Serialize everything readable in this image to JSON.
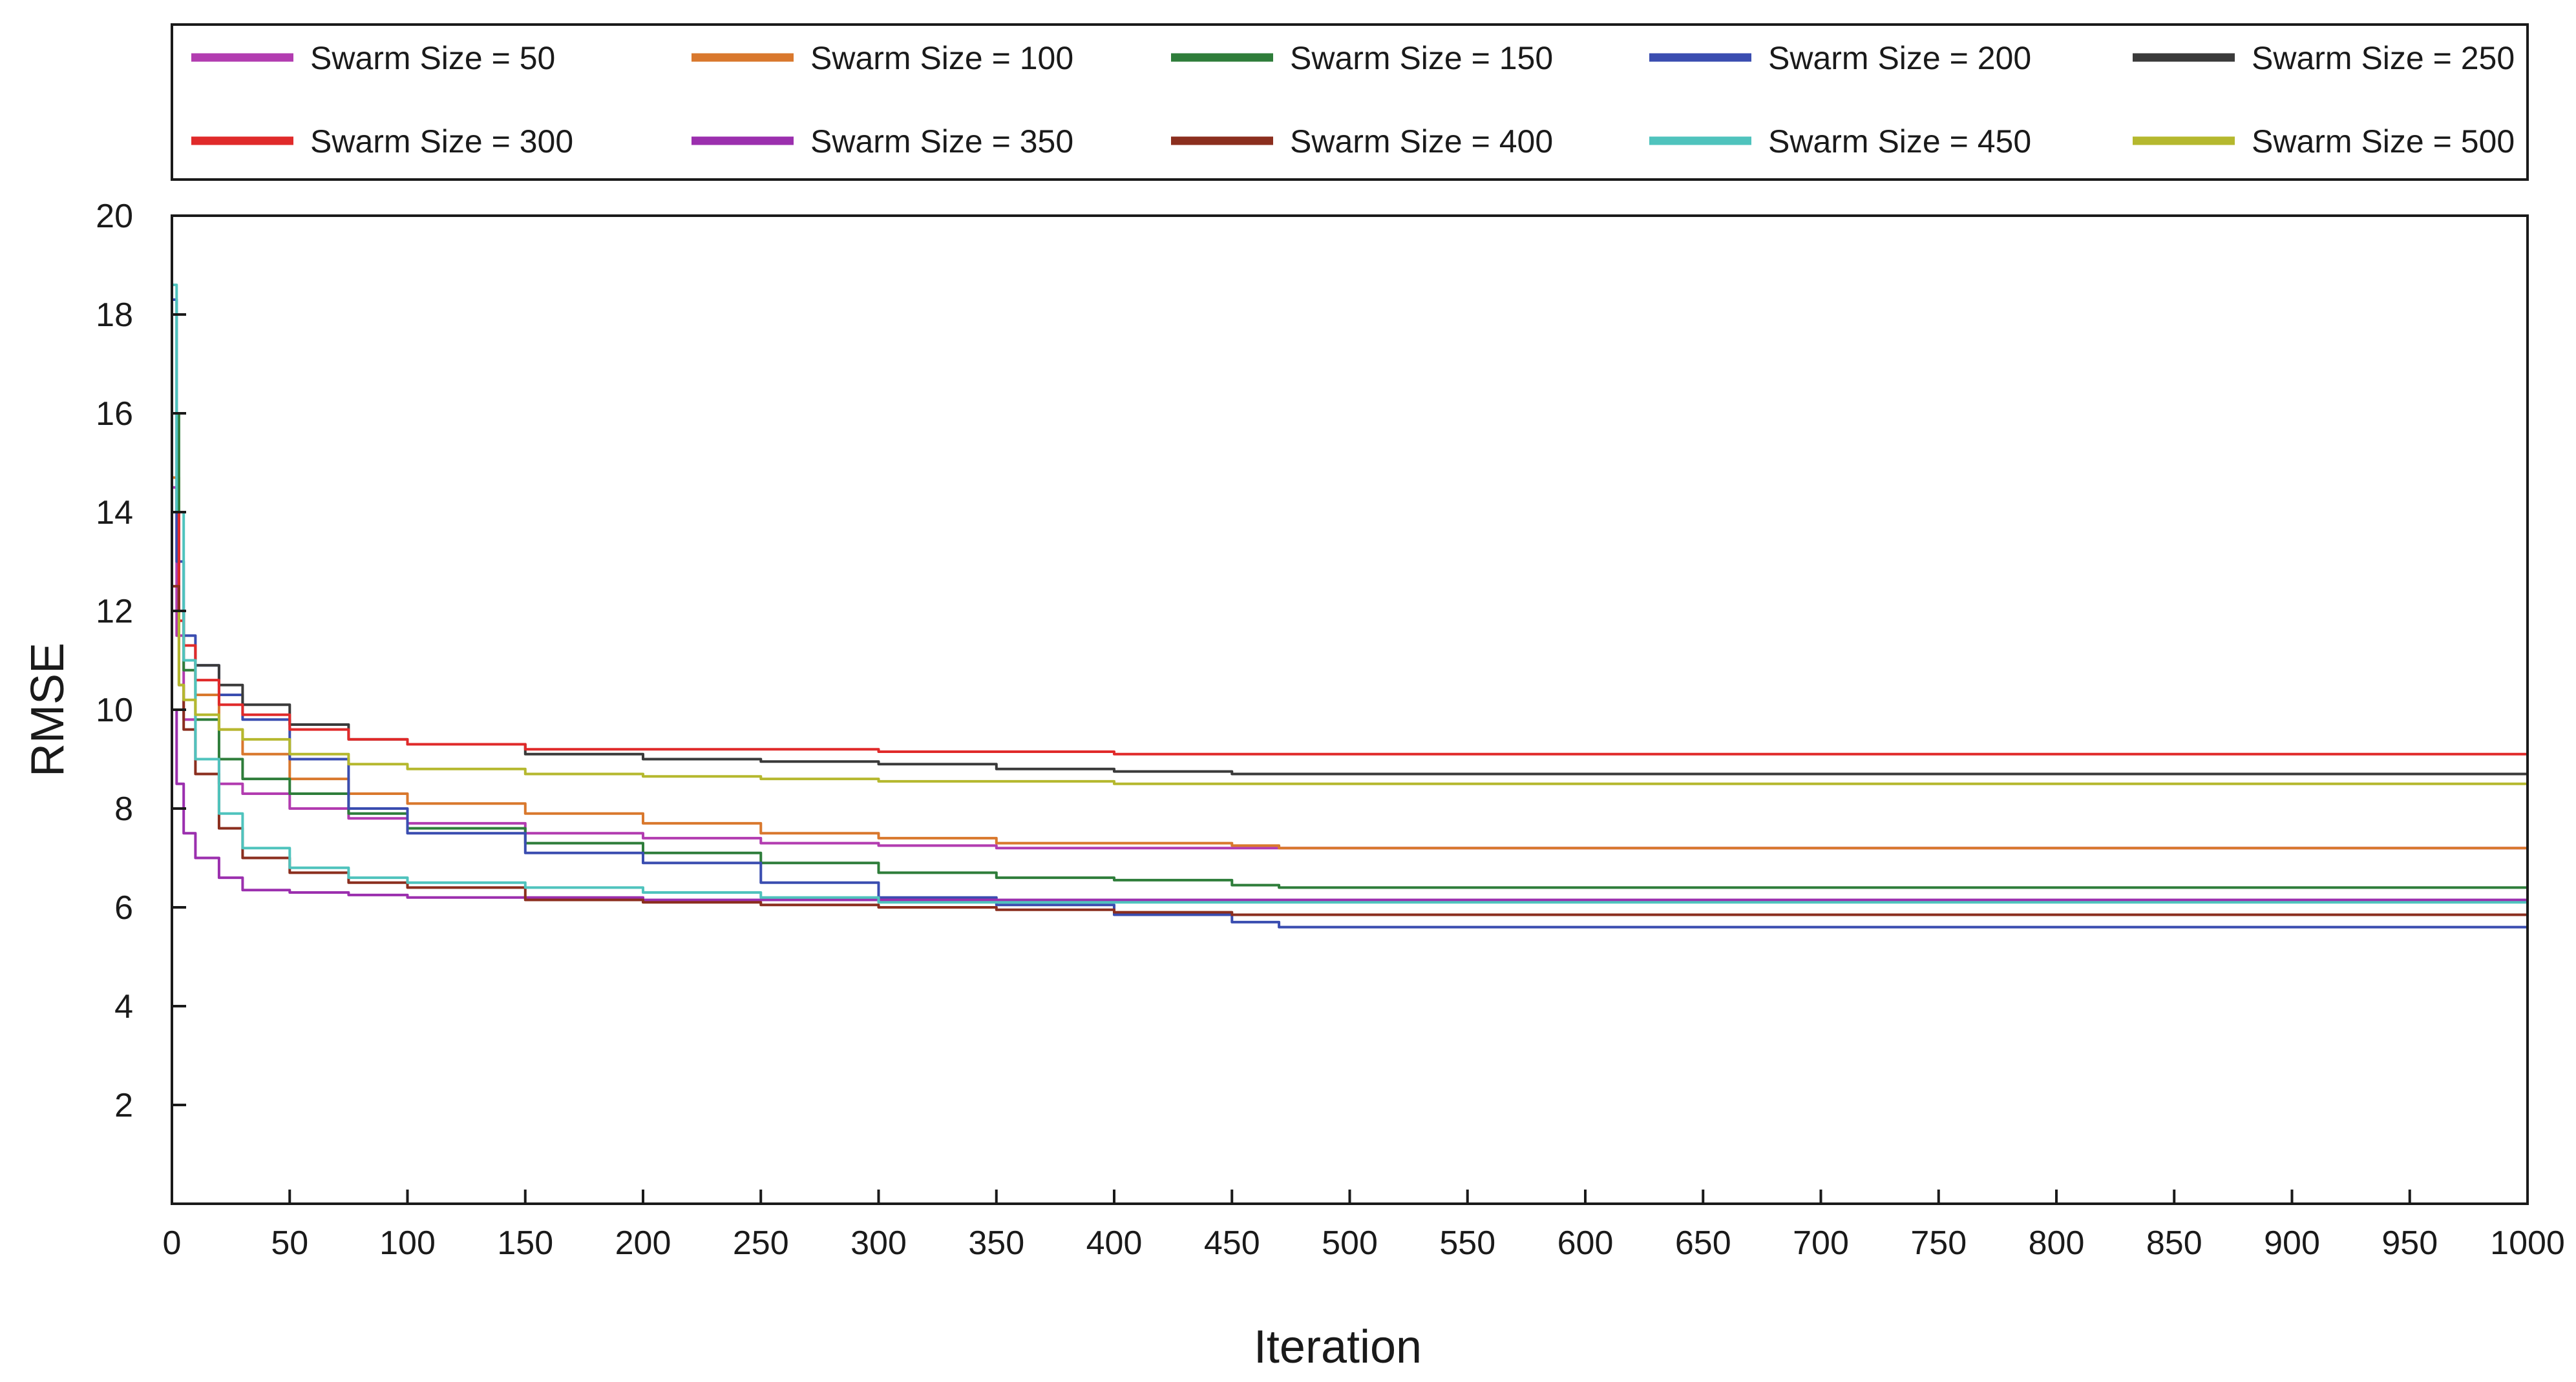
{
  "chart_data": {
    "type": "line",
    "title": "",
    "xlabel": "Iteration",
    "ylabel": "RMSE",
    "xlim": [
      0,
      1000
    ],
    "ylim": [
      0,
      20
    ],
    "x_ticks": [
      0,
      50,
      100,
      150,
      200,
      250,
      300,
      350,
      400,
      450,
      500,
      550,
      600,
      650,
      700,
      750,
      800,
      850,
      900,
      950,
      1000
    ],
    "y_ticks": [
      2,
      4,
      6,
      8,
      10,
      12,
      14,
      16,
      18,
      20
    ],
    "grid": false,
    "legend_position": "top",
    "series": [
      {
        "name": "Swarm Size = 50",
        "color": "#b23cb0",
        "points": [
          [
            0,
            14.5
          ],
          [
            2,
            11.5
          ],
          [
            5,
            9.8
          ],
          [
            10,
            9.0
          ],
          [
            20,
            8.5
          ],
          [
            30,
            8.3
          ],
          [
            50,
            8.0
          ],
          [
            75,
            7.8
          ],
          [
            100,
            7.7
          ],
          [
            150,
            7.5
          ],
          [
            200,
            7.4
          ],
          [
            250,
            7.3
          ],
          [
            300,
            7.25
          ],
          [
            350,
            7.2
          ],
          [
            450,
            7.2
          ],
          [
            1000,
            7.2
          ]
        ]
      },
      {
        "name": "Swarm Size = 100",
        "color": "#d9782d",
        "points": [
          [
            0,
            14.7
          ],
          [
            3,
            12.0
          ],
          [
            5,
            11.0
          ],
          [
            10,
            10.3
          ],
          [
            20,
            9.6
          ],
          [
            30,
            9.1
          ],
          [
            50,
            8.6
          ],
          [
            75,
            8.3
          ],
          [
            100,
            8.1
          ],
          [
            150,
            7.9
          ],
          [
            200,
            7.7
          ],
          [
            250,
            7.5
          ],
          [
            300,
            7.4
          ],
          [
            350,
            7.3
          ],
          [
            400,
            7.3
          ],
          [
            450,
            7.25
          ],
          [
            470,
            7.2
          ],
          [
            1000,
            7.2
          ]
        ]
      },
      {
        "name": "Swarm Size = 150",
        "color": "#2e7d3a",
        "points": [
          [
            0,
            16.0
          ],
          [
            3,
            12.0
          ],
          [
            5,
            10.8
          ],
          [
            10,
            9.8
          ],
          [
            20,
            9.0
          ],
          [
            30,
            8.6
          ],
          [
            50,
            8.3
          ],
          [
            75,
            7.9
          ],
          [
            100,
            7.6
          ],
          [
            150,
            7.3
          ],
          [
            200,
            7.1
          ],
          [
            250,
            6.9
          ],
          [
            300,
            6.7
          ],
          [
            350,
            6.6
          ],
          [
            400,
            6.55
          ],
          [
            450,
            6.45
          ],
          [
            470,
            6.4
          ],
          [
            1000,
            6.4
          ]
        ]
      },
      {
        "name": "Swarm Size = 200",
        "color": "#3a4db0",
        "points": [
          [
            0,
            18.3
          ],
          [
            2,
            13.0
          ],
          [
            5,
            11.5
          ],
          [
            10,
            10.9
          ],
          [
            20,
            10.3
          ],
          [
            30,
            9.8
          ],
          [
            50,
            9.0
          ],
          [
            75,
            8.0
          ],
          [
            100,
            7.5
          ],
          [
            150,
            7.1
          ],
          [
            200,
            6.9
          ],
          [
            250,
            6.5
          ],
          [
            300,
            6.2
          ],
          [
            350,
            6.05
          ],
          [
            400,
            5.85
          ],
          [
            450,
            5.7
          ],
          [
            470,
            5.6
          ],
          [
            1000,
            5.6
          ]
        ]
      },
      {
        "name": "Swarm Size = 250",
        "color": "#3a3a3a",
        "points": [
          [
            0,
            14.0
          ],
          [
            3,
            12.0
          ],
          [
            5,
            11.3
          ],
          [
            10,
            10.9
          ],
          [
            20,
            10.5
          ],
          [
            30,
            10.1
          ],
          [
            50,
            9.7
          ],
          [
            75,
            9.4
          ],
          [
            100,
            9.3
          ],
          [
            150,
            9.1
          ],
          [
            200,
            9.0
          ],
          [
            250,
            8.95
          ],
          [
            300,
            8.9
          ],
          [
            350,
            8.8
          ],
          [
            400,
            8.75
          ],
          [
            450,
            8.7
          ],
          [
            1000,
            8.7
          ]
        ]
      },
      {
        "name": "Swarm Size = 300",
        "color": "#e02a2a",
        "points": [
          [
            0,
            14.0
          ],
          [
            3,
            11.8
          ],
          [
            5,
            11.3
          ],
          [
            10,
            10.6
          ],
          [
            20,
            10.1
          ],
          [
            30,
            9.9
          ],
          [
            50,
            9.6
          ],
          [
            75,
            9.4
          ],
          [
            100,
            9.3
          ],
          [
            150,
            9.2
          ],
          [
            200,
            9.2
          ],
          [
            300,
            9.15
          ],
          [
            400,
            9.1
          ],
          [
            1000,
            9.1
          ]
        ]
      },
      {
        "name": "Swarm Size = 350",
        "color": "#9b2fae",
        "points": [
          [
            0,
            10.0
          ],
          [
            2,
            8.5
          ],
          [
            5,
            7.5
          ],
          [
            10,
            7.0
          ],
          [
            20,
            6.6
          ],
          [
            30,
            6.35
          ],
          [
            50,
            6.3
          ],
          [
            75,
            6.25
          ],
          [
            100,
            6.2
          ],
          [
            150,
            6.2
          ],
          [
            200,
            6.15
          ],
          [
            300,
            6.15
          ],
          [
            1000,
            6.15
          ]
        ]
      },
      {
        "name": "Swarm Size = 400",
        "color": "#8b2e1e",
        "points": [
          [
            0,
            12.5
          ],
          [
            3,
            10.5
          ],
          [
            5,
            9.6
          ],
          [
            10,
            8.7
          ],
          [
            20,
            7.6
          ],
          [
            30,
            7.0
          ],
          [
            50,
            6.7
          ],
          [
            75,
            6.5
          ],
          [
            100,
            6.4
          ],
          [
            150,
            6.15
          ],
          [
            200,
            6.1
          ],
          [
            250,
            6.05
          ],
          [
            300,
            6.0
          ],
          [
            350,
            5.95
          ],
          [
            400,
            5.9
          ],
          [
            450,
            5.85
          ],
          [
            1000,
            5.85
          ]
        ]
      },
      {
        "name": "Swarm Size = 450",
        "color": "#4fc3bd",
        "points": [
          [
            0,
            18.6
          ],
          [
            2,
            14.0
          ],
          [
            5,
            11.0
          ],
          [
            10,
            9.0
          ],
          [
            20,
            7.9
          ],
          [
            30,
            7.2
          ],
          [
            50,
            6.8
          ],
          [
            75,
            6.6
          ],
          [
            100,
            6.5
          ],
          [
            150,
            6.4
          ],
          [
            200,
            6.3
          ],
          [
            250,
            6.2
          ],
          [
            300,
            6.1
          ],
          [
            1000,
            6.1
          ]
        ]
      },
      {
        "name": "Swarm Size = 500",
        "color": "#b5b82e",
        "points": [
          [
            0,
            12.0
          ],
          [
            3,
            10.5
          ],
          [
            5,
            10.2
          ],
          [
            10,
            9.9
          ],
          [
            20,
            9.6
          ],
          [
            30,
            9.4
          ],
          [
            50,
            9.1
          ],
          [
            75,
            8.9
          ],
          [
            100,
            8.8
          ],
          [
            150,
            8.7
          ],
          [
            200,
            8.65
          ],
          [
            250,
            8.6
          ],
          [
            300,
            8.55
          ],
          [
            400,
            8.5
          ],
          [
            1000,
            8.5
          ]
        ]
      }
    ]
  }
}
